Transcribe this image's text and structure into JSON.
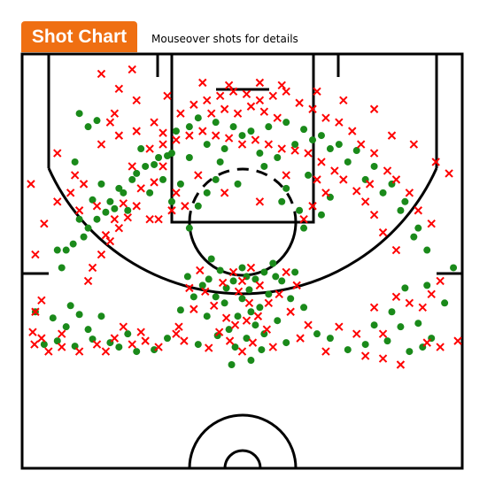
{
  "header": {
    "title": "Shot Chart",
    "subtitle": "Mouseover shots for details"
  },
  "colors": {
    "accent": "#ef6f12",
    "made": "#1a8a1a",
    "missed": "#ff0000",
    "court_lines": "#000000"
  },
  "chart_data": {
    "type": "scatter",
    "title": "Shot Chart",
    "subtitle": "Mouseover shots for details",
    "xlabel": "",
    "ylabel": "",
    "xlim": [
      -250,
      250
    ],
    "ylim": [
      -47.5,
      422.5
    ],
    "grid": false,
    "legend": "none",
    "series": [
      {
        "marker": "circle",
        "color": "#1a8a1a",
        "points": [
          [
            5,
            205
          ],
          [
            15,
            208
          ],
          [
            -10,
            210
          ],
          [
            25,
            200
          ],
          [
            -25,
            198
          ],
          [
            35,
            190
          ],
          [
            -35,
            185
          ],
          [
            0,
            230
          ],
          [
            10,
            245
          ],
          [
            -5,
            250
          ],
          [
            20,
            240
          ],
          [
            -20,
            235
          ],
          [
            45,
            210
          ],
          [
            -45,
            215
          ],
          [
            30,
            225
          ],
          [
            -30,
            228
          ],
          [
            15,
            260
          ],
          [
            -15,
            265
          ],
          [
            5,
            275
          ],
          [
            -8,
            285
          ],
          [
            25,
            270
          ],
          [
            -28,
            272
          ],
          [
            40,
            255
          ],
          [
            -40,
            250
          ],
          [
            55,
            230
          ],
          [
            -55,
            228
          ],
          [
            60,
            200
          ],
          [
            -62,
            205
          ],
          [
            50,
            280
          ],
          [
            -50,
            282
          ],
          [
            10,
            300
          ],
          [
            -12,
            305
          ],
          [
            70,
            240
          ],
          [
            -70,
            243
          ],
          [
            0,
            195
          ],
          [
            8,
            220
          ],
          [
            -18,
            218
          ],
          [
            38,
            205
          ],
          [
            -38,
            208
          ],
          [
            22,
            288
          ],
          [
            -225,
            282
          ],
          [
            -210,
            278
          ],
          [
            -190,
            284
          ],
          [
            -170,
            276
          ],
          [
            -200,
            262
          ],
          [
            -175,
            265
          ],
          [
            -150,
            280
          ],
          [
            -130,
            270
          ],
          [
            -120,
            290
          ],
          [
            -100,
            288
          ],
          [
            -85,
            275
          ],
          [
            -215,
            252
          ],
          [
            -160,
            250
          ],
          [
            -140,
            285
          ],
          [
            -185,
            248
          ],
          [
            -195,
            238
          ],
          [
            190,
            290
          ],
          [
            205,
            285
          ],
          [
            215,
            275
          ],
          [
            165,
            278
          ],
          [
            140,
            282
          ],
          [
            120,
            288
          ],
          [
            150,
            260
          ],
          [
            180,
            262
          ],
          [
            200,
            258
          ],
          [
            100,
            275
          ],
          [
            85,
            270
          ],
          [
            170,
            245
          ],
          [
            210,
            215
          ],
          [
            185,
            218
          ],
          [
            -200,
            175
          ],
          [
            -180,
            160
          ],
          [
            -165,
            140
          ],
          [
            -150,
            120
          ],
          [
            -140,
            105
          ],
          [
            -125,
            95
          ],
          [
            -110,
            80
          ],
          [
            -95,
            70
          ],
          [
            -175,
            150
          ],
          [
            -155,
            132
          ],
          [
            -135,
            110
          ],
          [
            -120,
            88
          ],
          [
            -100,
            78
          ],
          [
            -85,
            68
          ],
          [
            -192,
            168
          ],
          [
            -145,
            128
          ],
          [
            -105,
            110
          ],
          [
            -90,
            95
          ],
          [
            -160,
            100
          ],
          [
            -130,
            130
          ],
          [
            -205,
            195
          ],
          [
            -185,
            140
          ],
          [
            -170,
            118
          ],
          [
            -115,
            60
          ],
          [
            -75,
            40
          ],
          [
            -60,
            35
          ],
          [
            -50,
            25
          ],
          [
            -30,
            30
          ],
          [
            -10,
            35
          ],
          [
            10,
            40
          ],
          [
            30,
            35
          ],
          [
            50,
            30
          ],
          [
            70,
            38
          ],
          [
            90,
            45
          ],
          [
            110,
            55
          ],
          [
            130,
            62
          ],
          [
            150,
            80
          ],
          [
            170,
            100
          ],
          [
            185,
            120
          ],
          [
            200,
            150
          ],
          [
            210,
            175
          ],
          [
            195,
            160
          ],
          [
            180,
            130
          ],
          [
            160,
            110
          ],
          [
            140,
            95
          ],
          [
            120,
            75
          ],
          [
            100,
            60
          ],
          [
            80,
            50
          ],
          [
            60,
            55
          ],
          [
            -40,
            55
          ],
          [
            -20,
            60
          ],
          [
            0,
            45
          ],
          [
            20,
            65
          ],
          [
            40,
            70
          ],
          [
            -60,
            70
          ],
          [
            -80,
            65
          ],
          [
            -190,
            75
          ],
          [
            -175,
            35
          ],
          [
            -165,
            28
          ],
          [
            -185,
            20
          ],
          [
            -210,
            175
          ],
          [
            -235,
            245
          ],
          [
            230,
            235
          ],
          [
            240,
            195
          ],
          [
            -60,
            150
          ],
          [
            -50,
            125
          ],
          [
            -70,
            100
          ],
          [
            -40,
            110
          ],
          [
            -30,
            95
          ],
          [
            50,
            105
          ],
          [
            65,
            130
          ],
          [
            70,
            150
          ],
          [
            90,
            135
          ],
          [
            100,
            115
          ],
          [
            75,
            90
          ],
          [
            -80,
            120
          ],
          [
            45,
            120
          ],
          [
            -25,
            75
          ],
          [
            25,
            80
          ],
          [
            -5,
            100
          ]
        ]
      },
      {
        "marker": "x",
        "color": "#ff0000",
        "points": [
          [
            0,
            210
          ],
          [
            10,
            195
          ],
          [
            -10,
            200
          ],
          [
            20,
            215
          ],
          [
            -22,
            212
          ],
          [
            30,
            235
          ],
          [
            -32,
            238
          ],
          [
            5,
            255
          ],
          [
            -8,
            260
          ],
          [
            18,
            250
          ],
          [
            -18,
            252
          ],
          [
            42,
            225
          ],
          [
            -42,
            222
          ],
          [
            55,
            245
          ],
          [
            -55,
            242
          ],
          [
            12,
            280
          ],
          [
            -14,
            278
          ],
          [
            28,
            265
          ],
          [
            -26,
            268
          ],
          [
            62,
            215
          ],
          [
            -60,
            218
          ],
          [
            35,
            285
          ],
          [
            -38,
            286
          ],
          [
            0,
            290
          ],
          [
            50,
            200
          ],
          [
            -48,
            198
          ],
          [
            75,
            260
          ],
          [
            -72,
            262
          ],
          [
            8,
            235
          ],
          [
            -4,
            222
          ],
          [
            66,
            275
          ],
          [
            -66,
            278
          ],
          [
            -236,
            282
          ],
          [
            -228,
            275
          ],
          [
            -238,
            268
          ],
          [
            -220,
            290
          ],
          [
            -205,
            285
          ],
          [
            -165,
            282
          ],
          [
            -145,
            275
          ],
          [
            -125,
            282
          ],
          [
            -110,
            278
          ],
          [
            -95,
            285
          ],
          [
            -75,
            270
          ],
          [
            -185,
            290
          ],
          [
            -155,
            290
          ],
          [
            -135,
            262
          ],
          [
            -115,
            268
          ],
          [
            -205,
            270
          ],
          [
            -235,
            245
          ],
          [
            -228,
            232
          ],
          [
            -235,
            180
          ],
          [
            -210,
            120
          ],
          [
            -240,
            100
          ],
          [
            -195,
            110
          ],
          [
            -225,
            145
          ],
          [
            140,
            295
          ],
          [
            160,
            298
          ],
          [
            180,
            305
          ],
          [
            210,
            280
          ],
          [
            225,
            285
          ],
          [
            245,
            278
          ],
          [
            130,
            270
          ],
          [
            110,
            262
          ],
          [
            160,
            270
          ],
          [
            95,
            290
          ],
          [
            205,
            240
          ],
          [
            215,
            225
          ],
          [
            190,
            235
          ],
          [
            175,
            228
          ],
          [
            225,
            210
          ],
          [
            150,
            240
          ],
          [
            -175,
            210
          ],
          [
            -160,
            180
          ],
          [
            -150,
            165
          ],
          [
            -140,
            150
          ],
          [
            -130,
            138
          ],
          [
            -120,
            125
          ],
          [
            -170,
            195
          ],
          [
            -155,
            158
          ],
          [
            -145,
            140
          ],
          [
            -135,
            122
          ],
          [
            -115,
            105
          ],
          [
            -100,
            98
          ],
          [
            -105,
            140
          ],
          [
            -125,
            80
          ],
          [
            -165,
            125
          ],
          [
            -185,
            130
          ],
          [
            -180,
            100
          ],
          [
            -190,
            90
          ],
          [
            -210,
            65
          ],
          [
            -160,
            55
          ],
          [
            -140,
            45
          ],
          [
            -120,
            40
          ],
          [
            -100,
            30
          ],
          [
            -90,
            42
          ],
          [
            -70,
            20
          ],
          [
            -55,
            10
          ],
          [
            -40,
            5
          ],
          [
            -25,
            0
          ],
          [
            -10,
            -5
          ],
          [
            5,
            -2
          ],
          [
            20,
            5
          ],
          [
            35,
            0
          ],
          [
            50,
            -5
          ],
          [
            65,
            8
          ],
          [
            80,
            15
          ],
          [
            95,
            25
          ],
          [
            110,
            30
          ],
          [
            125,
            40
          ],
          [
            135,
            55
          ],
          [
            150,
            65
          ],
          [
            165,
            85
          ],
          [
            175,
            95
          ],
          [
            190,
            110
          ],
          [
            200,
            130
          ],
          [
            215,
            145
          ],
          [
            175,
            175
          ],
          [
            160,
            155
          ],
          [
            150,
            135
          ],
          [
            140,
            120
          ],
          [
            130,
            108
          ],
          [
            115,
            95
          ],
          [
            105,
            85
          ],
          [
            90,
            75
          ],
          [
            75,
            65
          ],
          [
            60,
            62
          ],
          [
            45,
            60
          ],
          [
            30,
            55
          ],
          [
            15,
            50
          ],
          [
            0,
            55
          ],
          [
            -15,
            48
          ],
          [
            -30,
            45
          ],
          [
            -45,
            40
          ],
          [
            -60,
            45
          ],
          [
            -75,
            50
          ],
          [
            -90,
            55
          ],
          [
            -105,
            60
          ],
          [
            -35,
            20
          ],
          [
            -20,
            15
          ],
          [
            -5,
            20
          ],
          [
            10,
            12
          ],
          [
            25,
            18
          ],
          [
            40,
            25
          ],
          [
            -95,
            140
          ],
          [
            -120,
            5
          ],
          [
            -150,
            30
          ],
          [
            -140,
            -8
          ],
          [
            -85,
            0
          ],
          [
            -45,
            -15
          ],
          [
            -15,
            -12
          ],
          [
            20,
            -15
          ],
          [
            45,
            -12
          ],
          [
            85,
            -5
          ],
          [
            115,
            5
          ],
          [
            150,
            15
          ],
          [
            -125,
            -30
          ],
          [
            -145,
            20
          ],
          [
            170,
            45
          ],
          [
            195,
            55
          ],
          [
            220,
            75
          ],
          [
            235,
            88
          ],
          [
            -80,
            130
          ],
          [
            -65,
            125
          ],
          [
            80,
            125
          ],
          [
            70,
            140
          ],
          [
            95,
            110
          ],
          [
            -50,
            90
          ],
          [
            50,
            90
          ],
          [
            -20,
            110
          ],
          [
            20,
            120
          ],
          [
            -90,
            80
          ],
          [
            85,
            95
          ],
          [
            -75,
            110
          ],
          [
            145,
            100
          ],
          [
            -160,
            -25
          ]
        ]
      }
    ]
  }
}
